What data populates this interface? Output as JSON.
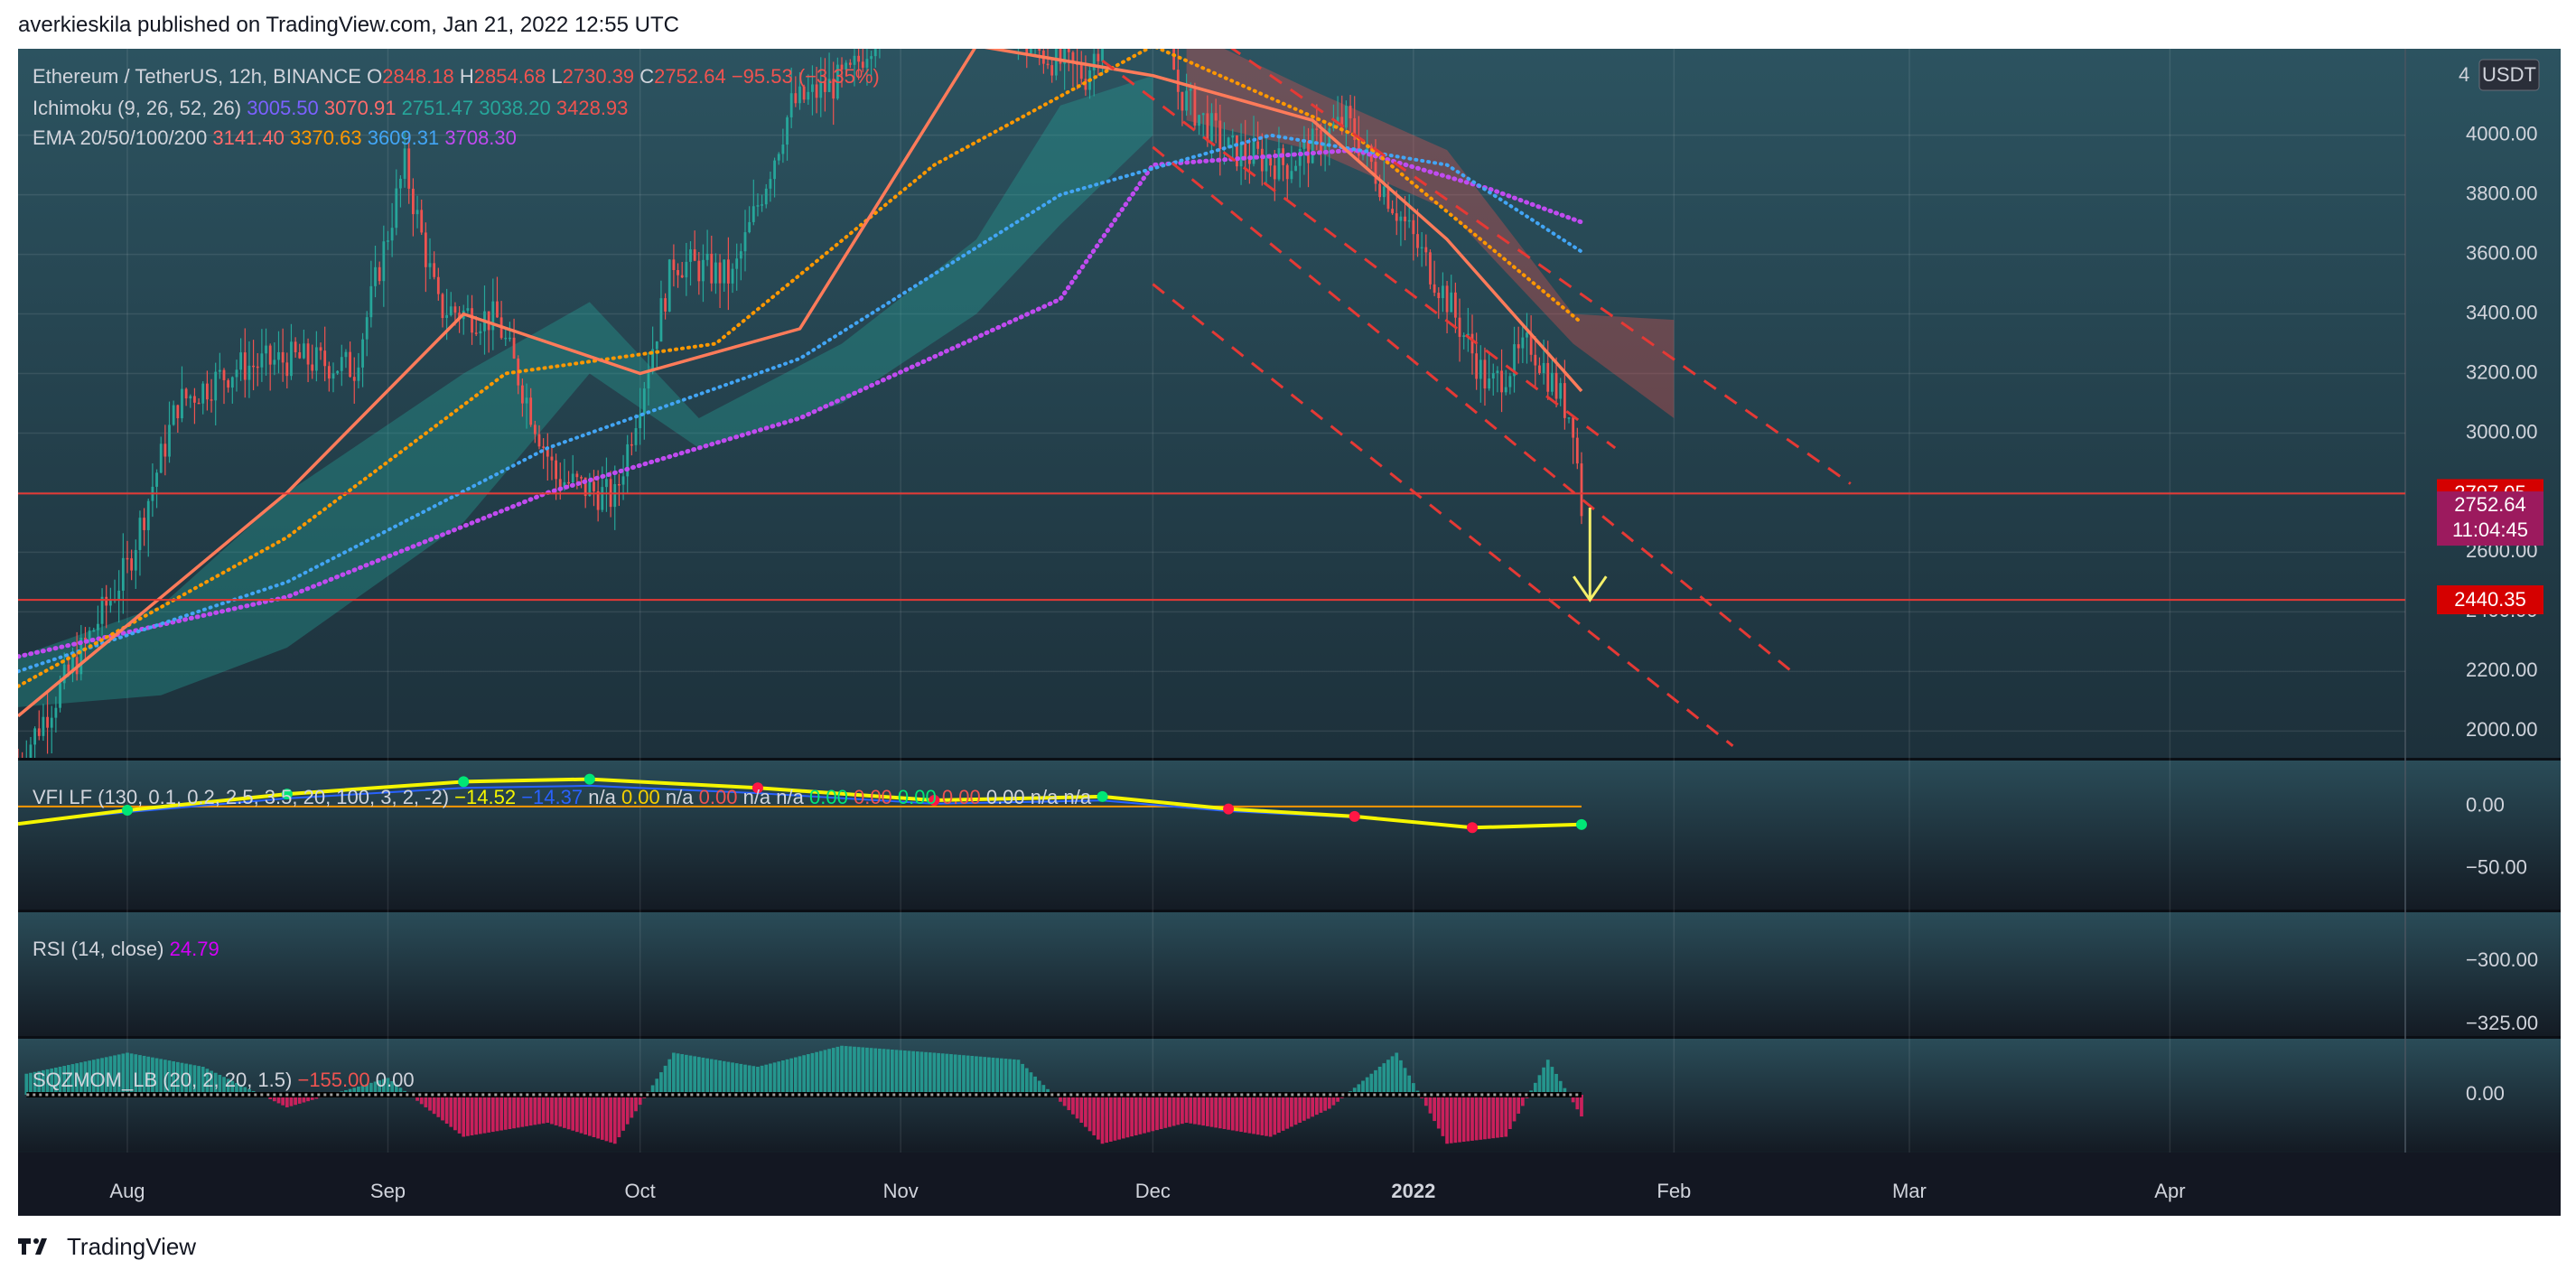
{
  "attribution": "averkieskila published on TradingView.com, Jan 21, 2022 12:55 UTC",
  "footer_brand": "TradingView",
  "colors": {
    "bg_top": "#2c5360",
    "bg_bottom": "#121821",
    "up": "#26a69a",
    "down": "#ef5350",
    "ichimoku_conv": "#7b61ff",
    "ichimoku_base": "#ff6b6b",
    "ema20": "#ff7b5a",
    "ema50": "#ff9800",
    "ema100": "#42a5f5",
    "ema200": "#c04bf0",
    "support": "#e53935",
    "arrow": "#f5f06a",
    "vfi": "#f5f500",
    "vfi_signal": "#2962ff"
  },
  "chart_data": {
    "type": "candlestick",
    "symbol": "Ethereum / TetherUS, 12h, BINANCE",
    "ohlc_legend": {
      "O": "2848.18",
      "H": "2854.68",
      "L": "2730.39",
      "C": "2752.64",
      "change": "−95.53 (−3.35%)"
    },
    "indicators": [
      {
        "name": "Ichimoku (9, 26, 52, 26)",
        "values": [
          "3005.50",
          "3070.91",
          "2751.47",
          "3038.20",
          "3428.93"
        ],
        "colors": [
          "#7b61ff",
          "#ff6b6b",
          "#26a69a",
          "#26a69a",
          "#ef5350"
        ]
      },
      {
        "name": "EMA 20/50/100/200",
        "values": [
          "3141.40",
          "3370.63",
          "3609.31",
          "3708.30"
        ],
        "colors": [
          "#ff6b6b",
          "#ff9800",
          "#42a5f5",
          "#c04bf0"
        ]
      }
    ],
    "currency": "USDT",
    "price_axis": {
      "ticks": [
        "4000.00",
        "3800.00",
        "3600.00",
        "3400.00",
        "3200.00",
        "3000.00",
        "2800.00",
        "2600.00",
        "2400.00",
        "2200.00",
        "2000.00"
      ],
      "tick_values": [
        4000,
        3800,
        3600,
        3400,
        3200,
        3000,
        2800,
        2600,
        2400,
        2200,
        2000
      ],
      "ylim": [
        1910,
        4290
      ],
      "scale": "linear"
    },
    "time_axis": {
      "labels": [
        "Aug",
        "Sep",
        "Oct",
        "Nov",
        "Dec",
        "2022",
        "Feb",
        "Mar",
        "Apr"
      ],
      "label_dates": [
        "2021-08-01",
        "2021-09-01",
        "2021-10-01",
        "2021-11-01",
        "2021-12-01",
        "2022-01-01",
        "2022-02-01",
        "2022-03-01",
        "2022-04-01"
      ],
      "xlim": [
        "2021-07-19",
        "2022-04-29"
      ]
    },
    "price_labels": [
      {
        "text": "2797.05",
        "value": 2797.05,
        "color": "#d50000"
      },
      {
        "text": "2752.64",
        "value": 2752.64,
        "color": "#9c1a5e"
      },
      {
        "text": "11:04:45",
        "value": 2752.64,
        "color": "#9c1a5e"
      },
      {
        "text": "2440.35",
        "value": 2440.35,
        "color": "#d50000"
      }
    ],
    "horizontal_lines": [
      2797.05,
      2440.35
    ],
    "approx_close_series": {
      "dates": [
        "2021-07-19",
        "2021-07-25",
        "2021-08-01",
        "2021-08-07",
        "2021-08-14",
        "2021-08-21",
        "2021-08-28",
        "2021-09-03",
        "2021-09-07",
        "2021-09-14",
        "2021-09-21",
        "2021-09-28",
        "2021-10-05",
        "2021-10-12",
        "2021-10-19",
        "2021-10-26",
        "2021-11-02",
        "2021-11-09",
        "2021-11-16",
        "2021-11-23",
        "2021-11-30",
        "2021-12-04",
        "2021-12-10",
        "2021-12-17",
        "2021-12-24",
        "2021-12-30",
        "2022-01-05",
        "2022-01-10",
        "2022-01-15",
        "2022-01-20",
        "2022-01-21"
      ],
      "close": [
        1890,
        2190,
        2550,
        3100,
        3220,
        3250,
        3220,
        3900,
        3420,
        3380,
        2850,
        2780,
        3580,
        3520,
        4100,
        4200,
        4550,
        4750,
        4300,
        4200,
        4700,
        4150,
        3950,
        3900,
        4050,
        3750,
        3450,
        3150,
        3300,
        3040,
        2752
      ]
    },
    "ichimoku_cloud_bull": {
      "dates": [
        "2021-07-19",
        "2021-08-05",
        "2021-08-20",
        "2021-09-10",
        "2021-09-25",
        "2021-10-08",
        "2021-10-25",
        "2021-11-10",
        "2021-11-20",
        "2021-12-01"
      ],
      "upper": [
        2250,
        2420,
        2800,
        3200,
        3440,
        3050,
        3300,
        3650,
        4100,
        4200
      ],
      "lower": [
        2080,
        2120,
        2280,
        2700,
        3200,
        2950,
        3100,
        3400,
        3700,
        4000
      ]
    },
    "ichimoku_cloud_bear": {
      "dates": [
        "2021-12-05",
        "2021-12-20",
        "2022-01-05",
        "2022-01-20",
        "2022-02-01"
      ],
      "upper": [
        4350,
        4150,
        3950,
        3400,
        3380
      ],
      "lower": [
        4050,
        3950,
        3750,
        3300,
        3050
      ]
    },
    "ema20": {
      "dates": [
        "2021-07-19",
        "2021-08-20",
        "2021-09-10",
        "2021-10-01",
        "2021-10-20",
        "2021-11-10",
        "2021-12-01",
        "2021-12-20",
        "2022-01-05",
        "2022-01-21"
      ],
      "values": [
        2050,
        2800,
        3400,
        3200,
        3350,
        4300,
        4200,
        4050,
        3650,
        3141
      ]
    },
    "ema50": {
      "dates": [
        "2021-07-19",
        "2021-08-20",
        "2021-09-15",
        "2021-10-10",
        "2021-11-05",
        "2021-12-01",
        "2021-12-25",
        "2022-01-21"
      ],
      "values": [
        2150,
        2650,
        3200,
        3300,
        3900,
        4300,
        4000,
        3370
      ]
    },
    "ema100": {
      "dates": [
        "2021-07-19",
        "2021-08-20",
        "2021-09-20",
        "2021-10-20",
        "2021-11-20",
        "2021-12-15",
        "2022-01-05",
        "2022-01-21"
      ],
      "values": [
        2200,
        2500,
        2950,
        3250,
        3800,
        4000,
        3900,
        3609
      ]
    },
    "ema200": {
      "dates": [
        "2021-07-19",
        "2021-08-20",
        "2021-09-20",
        "2021-10-20",
        "2021-11-20",
        "2021-12-01",
        "2021-12-25",
        "2022-01-10",
        "2022-01-21"
      ],
      "values": [
        2250,
        2450,
        2800,
        3050,
        3450,
        3900,
        3950,
        3820,
        3708
      ]
    },
    "trend_channel": [
      {
        "from": [
          "2021-11-25",
          4250
        ],
        "to": [
          "2022-01-25",
          2950
        ]
      },
      {
        "from": [
          "2021-12-01",
          3960
        ],
        "to": [
          "2022-02-15",
          2200
        ]
      },
      {
        "from": [
          "2021-12-01",
          3500
        ],
        "to": [
          "2022-02-08",
          1950
        ]
      },
      {
        "from": [
          "2021-12-10",
          4300
        ],
        "to": [
          "2022-02-22",
          2830
        ]
      }
    ],
    "arrow": {
      "from": [
        "2022-01-22",
        2750
      ],
      "to": [
        "2022-01-22",
        2440
      ]
    },
    "sub_panes": [
      {
        "name": "VFI LF (130, 0.1, 0.2, 2.5, 3.5, 20, 100, 3, 2, -2)",
        "legend_values": [
          "−14.52",
          "−14.37",
          "n/a",
          "0.00",
          "n/a",
          "0.00",
          "n/a",
          "n/a",
          "0.00",
          "0.00",
          "0.00",
          "0.00",
          "0.00",
          "n/a",
          "n/a"
        ],
        "legend_colors": [
          "#f5f500",
          "#2962ff",
          "#d1d4dc",
          "#f5d000",
          "#d1d4dc",
          "#ef5350",
          "#d1d4dc",
          "#d1d4dc",
          "#00e676",
          "#ef5350",
          "#00e676",
          "#ef5350",
          "#d1d4dc",
          "#d1d4dc",
          "#d1d4dc"
        ],
        "ticks": [
          "0.00",
          "−50.00"
        ],
        "tick_values": [
          0,
          -50
        ],
        "ylim": [
          -83,
          37
        ],
        "vfi": {
          "dates": [
            "2021-07-19",
            "2021-08-01",
            "2021-08-20",
            "2021-09-10",
            "2021-09-25",
            "2021-10-15",
            "2021-11-05",
            "2021-11-25",
            "2021-12-10",
            "2021-12-25",
            "2022-01-08",
            "2022-01-21"
          ],
          "values": [
            -14,
            -3,
            10,
            20,
            22,
            15,
            5,
            8,
            -2,
            -8,
            -17,
            -14.5
          ]
        }
      },
      {
        "name": "RSI (14, close)",
        "legend_values": [
          "24.79"
        ],
        "legend_colors": [
          "#d500f9"
        ],
        "ticks": [
          "−300.00",
          "−325.00"
        ],
        "tick_values": [
          -300,
          -325
        ]
      },
      {
        "name": "SQZMOM_LB (20, 2, 20, 1.5)",
        "legend_values": [
          "−155.00",
          "0.00"
        ],
        "legend_colors": [
          "#ef5350",
          "#d1d4dc"
        ],
        "ticks": [
          "0.00"
        ],
        "tick_values": [
          0
        ],
        "ylim": [
          -400,
          400
        ],
        "histogram": {
          "dates": [
            "2021-07-20",
            "2021-08-01",
            "2021-08-10",
            "2021-08-20",
            "2021-09-01",
            "2021-09-10",
            "2021-09-20",
            "2021-09-28",
            "2021-10-05",
            "2021-10-15",
            "2021-10-25",
            "2021-11-05",
            "2021-11-15",
            "2021-11-25",
            "2021-12-05",
            "2021-12-15",
            "2021-12-22",
            "2021-12-30",
            "2022-01-05",
            "2022-01-12",
            "2022-01-17",
            "2022-01-21"
          ],
          "values": [
            150,
            300,
            200,
            -90,
            120,
            -300,
            -200,
            -350,
            300,
            200,
            350,
            300,
            250,
            -350,
            -200,
            -300,
            -100,
            300,
            -350,
            -300,
            250,
            -155
          ]
        }
      }
    ]
  }
}
